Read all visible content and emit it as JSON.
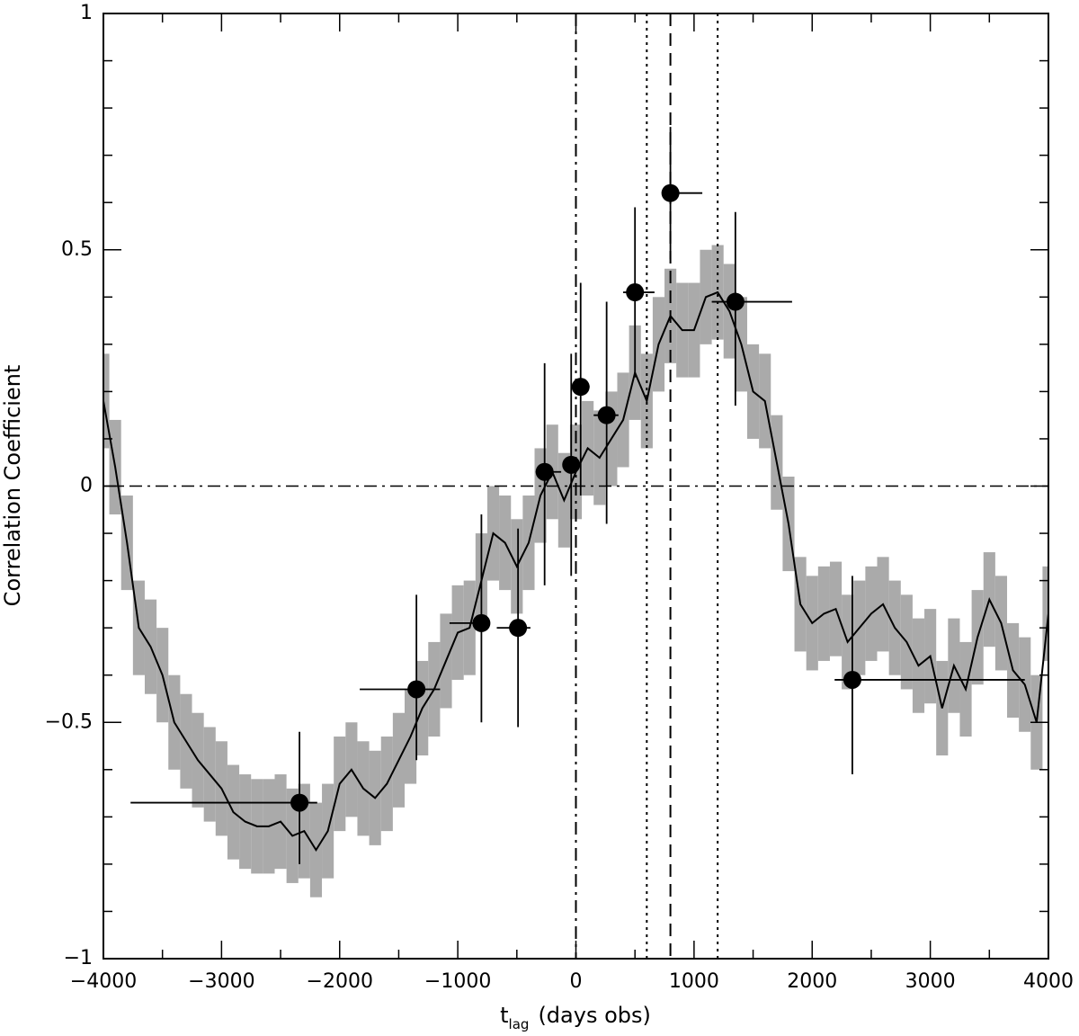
{
  "chart_data": {
    "type": "ccf",
    "xlabel": "t",
    "xlabel_subscript": "lag",
    "xlabel_suffix": "(days obs)",
    "ylabel": "Correlation Coefficient",
    "xlim": [
      -4000,
      4000
    ],
    "ylim": [
      -1,
      1
    ],
    "xticks": [
      {
        "value": -4000,
        "label": "−4000"
      },
      {
        "value": -3000,
        "label": "−3000"
      },
      {
        "value": -2000,
        "label": "−2000"
      },
      {
        "value": -1000,
        "label": "−1000"
      },
      0,
      1000,
      2000,
      3000,
      4000
    ],
    "yticks": [
      {
        "value": -1,
        "label": "−1"
      },
      {
        "value": -0.5,
        "label": "−0.5"
      },
      0,
      0.5,
      1
    ],
    "xminorticks": [
      -3500,
      -2500,
      -1500,
      -500,
      500,
      1500,
      2500,
      3500
    ],
    "yminorticks": [
      -0.9,
      -0.8,
      -0.7,
      -0.6,
      -0.4,
      -0.3,
      -0.2,
      -0.1,
      0.1,
      0.2,
      0.3,
      0.4,
      0.6,
      0.7,
      0.8,
      0.9
    ],
    "x": [
      -4000,
      -3900,
      -3800,
      -3700,
      -3600,
      -3500,
      -3400,
      -3300,
      -3200,
      -3100,
      -3000,
      -2900,
      -2800,
      -2700,
      -2600,
      -2500,
      -2400,
      -2300,
      -2200,
      -2100,
      -2000,
      -1900,
      -1800,
      -1700,
      -1600,
      -1500,
      -1400,
      -1300,
      -1200,
      -1100,
      -1000,
      -900,
      -800,
      -700,
      -600,
      -500,
      -400,
      -300,
      -200,
      -100,
      0,
      100,
      200,
      300,
      400,
      500,
      600,
      700,
      800,
      900,
      1000,
      1100,
      1200,
      1300,
      1400,
      1500,
      1600,
      1700,
      1800,
      1900,
      2000,
      2100,
      2200,
      2300,
      2400,
      2500,
      2600,
      2700,
      2800,
      2900,
      3000,
      3100,
      3200,
      3300,
      3400,
      3500,
      3600,
      3700,
      3800,
      3900,
      4000
    ],
    "line": {
      "color": "#000000",
      "values": [
        0.18,
        0.04,
        -0.12,
        -0.3,
        -0.34,
        -0.4,
        -0.5,
        -0.54,
        -0.58,
        -0.61,
        -0.64,
        -0.69,
        -0.71,
        -0.72,
        -0.72,
        -0.71,
        -0.74,
        -0.73,
        -0.77,
        -0.73,
        -0.63,
        -0.6,
        -0.64,
        -0.66,
        -0.63,
        -0.58,
        -0.53,
        -0.47,
        -0.43,
        -0.37,
        -0.31,
        -0.3,
        -0.2,
        -0.1,
        -0.12,
        -0.17,
        -0.12,
        -0.02,
        0.03,
        -0.03,
        0.03,
        0.08,
        0.06,
        0.1,
        0.14,
        0.24,
        0.18,
        0.3,
        0.36,
        0.33,
        0.33,
        0.4,
        0.41,
        0.37,
        0.3,
        0.2,
        0.18,
        0.05,
        -0.08,
        -0.25,
        -0.29,
        -0.27,
        -0.26,
        -0.33,
        -0.3,
        -0.27,
        -0.25,
        -0.3,
        -0.33,
        -0.38,
        -0.36,
        -0.47,
        -0.38,
        -0.43,
        -0.32,
        -0.24,
        -0.29,
        -0.39,
        -0.42,
        -0.5,
        -0.27
      ]
    },
    "band": {
      "color": "#aaaaaa",
      "upper": [
        0.28,
        0.14,
        -0.02,
        -0.2,
        -0.24,
        -0.3,
        -0.4,
        -0.44,
        -0.48,
        -0.51,
        -0.54,
        -0.59,
        -0.61,
        -0.62,
        -0.62,
        -0.61,
        -0.64,
        -0.63,
        -0.67,
        -0.63,
        -0.53,
        -0.5,
        -0.54,
        -0.56,
        -0.53,
        -0.48,
        -0.43,
        -0.37,
        -0.33,
        -0.27,
        -0.21,
        -0.2,
        -0.1,
        0.0,
        -0.02,
        -0.07,
        -0.02,
        0.08,
        0.13,
        0.07,
        0.13,
        0.18,
        0.16,
        0.2,
        0.24,
        0.34,
        0.28,
        0.4,
        0.46,
        0.43,
        0.43,
        0.5,
        0.51,
        0.47,
        0.4,
        0.3,
        0.28,
        0.15,
        0.02,
        -0.15,
        -0.19,
        -0.17,
        -0.16,
        -0.23,
        -0.2,
        -0.17,
        -0.15,
        -0.2,
        -0.23,
        -0.28,
        -0.26,
        -0.37,
        -0.28,
        -0.33,
        -0.22,
        -0.14,
        -0.19,
        -0.29,
        -0.32,
        -0.4,
        -0.17
      ],
      "lower": [
        0.08,
        -0.06,
        -0.22,
        -0.4,
        -0.44,
        -0.5,
        -0.6,
        -0.64,
        -0.68,
        -0.71,
        -0.74,
        -0.79,
        -0.81,
        -0.82,
        -0.82,
        -0.81,
        -0.84,
        -0.83,
        -0.87,
        -0.83,
        -0.73,
        -0.7,
        -0.74,
        -0.76,
        -0.73,
        -0.68,
        -0.63,
        -0.57,
        -0.53,
        -0.47,
        -0.41,
        -0.4,
        -0.3,
        -0.2,
        -0.22,
        -0.27,
        -0.22,
        -0.12,
        -0.07,
        -0.13,
        -0.07,
        -0.02,
        -0.04,
        0.0,
        0.04,
        0.14,
        0.08,
        0.2,
        0.26,
        0.23,
        0.23,
        0.3,
        0.31,
        0.27,
        0.2,
        0.1,
        0.08,
        -0.05,
        -0.18,
        -0.35,
        -0.39,
        -0.37,
        -0.36,
        -0.43,
        -0.4,
        -0.37,
        -0.35,
        -0.4,
        -0.43,
        -0.48,
        -0.46,
        -0.57,
        -0.48,
        -0.53,
        -0.42,
        -0.34,
        -0.39,
        -0.49,
        -0.52,
        -0.6,
        -0.37
      ]
    },
    "points": {
      "color": "#000000",
      "x": [
        -2340,
        -1350,
        -800,
        -490,
        -265,
        -40,
        40,
        260,
        500,
        800,
        1350,
        2340
      ],
      "values": [
        -0.67,
        -0.43,
        -0.29,
        -0.3,
        0.03,
        0.045,
        0.21,
        0.15,
        0.41,
        0.62,
        0.39,
        -0.41
      ],
      "x_low": [
        -3770,
        -1830,
        -1070,
        -670,
        -340,
        -95,
        -20,
        150,
        400,
        760,
        1150,
        2190
      ],
      "x_high": [
        -2190,
        -1150,
        -730,
        -385,
        -125,
        0,
        115,
        360,
        665,
        1070,
        1830,
        3800
      ],
      "y_low": [
        -0.8,
        -0.58,
        -0.5,
        -0.51,
        -0.21,
        -0.19,
        -0.02,
        -0.08,
        0.23,
        0.48,
        0.17,
        -0.61
      ],
      "y_high": [
        -0.52,
        -0.23,
        -0.06,
        -0.09,
        0.26,
        0.28,
        0.43,
        0.39,
        0.59,
        0.76,
        0.58,
        -0.19
      ]
    },
    "vlines": [
      {
        "x": 0,
        "style": "dashdot"
      },
      {
        "x": 600,
        "style": "dotted"
      },
      {
        "x": 800,
        "style": "dashed"
      },
      {
        "x": 1200,
        "style": "dotted"
      }
    ],
    "hlines": [
      {
        "y": 0,
        "style": "dashdot"
      }
    ]
  }
}
